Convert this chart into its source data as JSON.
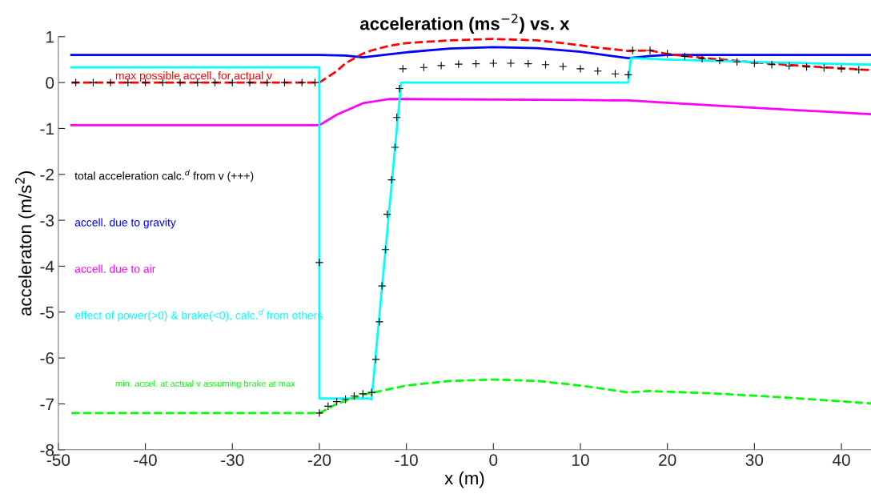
{
  "chart_data": {
    "type": "line",
    "title": "acceleration (ms$^{−2}$) vs. x",
    "xlabel": "x (m)",
    "ylabel": "acceleraton (m/s$^{2}$)",
    "xlim": [
      -50,
      43.4
    ],
    "ylim": [
      -8,
      1
    ],
    "xticks": [
      -50,
      -40,
      -30,
      -20,
      -10,
      0,
      10,
      20,
      30,
      40
    ],
    "yticks": [
      -8,
      -7,
      -6,
      -5,
      -4,
      -3,
      -2,
      -1,
      0,
      1
    ],
    "grid": false,
    "series": [
      {
        "name": "accell. due to gravity",
        "color": "#0000ff",
        "line_style": "solid",
        "x": [
          -48.5,
          -20,
          -17,
          -15,
          -10,
          -5,
          0,
          5,
          10,
          15.5,
          18,
          20,
          30,
          43.4
        ],
        "values": [
          0.6,
          0.6,
          0.59,
          0.55,
          0.66,
          0.74,
          0.77,
          0.75,
          0.67,
          0.53,
          0.58,
          0.6,
          0.6,
          0.6
        ]
      },
      {
        "name": "max possible accell. for actual v",
        "color": "#ff0000",
        "line_style": "dashed",
        "x": [
          -48.5,
          -20,
          -18,
          -17,
          -15,
          -14,
          -12,
          -10,
          -5,
          0,
          5,
          8,
          12,
          15.5,
          18,
          20,
          25,
          30,
          35,
          40,
          43.4
        ],
        "values": [
          0,
          0,
          0.25,
          0.42,
          0.63,
          0.7,
          0.8,
          0.86,
          0.92,
          0.95,
          0.92,
          0.86,
          0.76,
          0.69,
          0.7,
          0.62,
          0.52,
          0.44,
          0.37,
          0.31,
          0.27
        ]
      },
      {
        "name": "total acceleration calc.$^{d}$ from v (+++)",
        "type": "scatter",
        "marker": "cross",
        "color": "#000000",
        "x": [
          -48,
          -46,
          -44,
          -42,
          -40,
          -38,
          -36,
          -34,
          -32,
          -30,
          -28,
          -26,
          -24,
          -22,
          -20.5,
          -20,
          -20,
          -19,
          -18,
          -17,
          -16,
          -15,
          -14,
          -13.5,
          -13.1,
          -12.8,
          -12.4,
          -12.2,
          -11.7,
          -11.3,
          -11.1,
          -10.8,
          -10.4,
          -8,
          -6,
          -4,
          -2,
          0,
          2,
          4,
          6,
          8,
          10,
          12,
          14,
          15.5,
          16,
          18,
          20,
          22,
          24,
          26,
          28,
          30,
          32,
          34,
          36,
          38,
          40,
          42
        ],
        "values": [
          0,
          0,
          0,
          0,
          0,
          0,
          0,
          0,
          0,
          0,
          0,
          0,
          0,
          0,
          0,
          -3.92,
          -7.2,
          -7.05,
          -6.95,
          -6.9,
          -6.83,
          -6.78,
          -6.75,
          -6.03,
          -5.21,
          -4.43,
          -3.64,
          -2.87,
          -2.12,
          -1.41,
          -0.76,
          -0.13,
          0.3,
          0.33,
          0.37,
          0.4,
          0.41,
          0.42,
          0.42,
          0.41,
          0.39,
          0.35,
          0.3,
          0.25,
          0.19,
          0.17,
          0.7,
          0.7,
          0.63,
          0.57,
          0.52,
          0.48,
          0.45,
          0.42,
          0.39,
          0.36,
          0.34,
          0.32,
          0.3,
          0.28
        ]
      },
      {
        "name": "accell. due to air",
        "color": "#ff00ff",
        "line_style": "solid",
        "x": [
          -48.5,
          -20,
          -18,
          -15,
          -12,
          -10,
          0,
          10,
          15.5,
          20,
          30,
          43.4
        ],
        "values": [
          -0.93,
          -0.93,
          -0.7,
          -0.45,
          -0.36,
          -0.36,
          -0.37,
          -0.38,
          -0.39,
          -0.44,
          -0.55,
          -0.69
        ]
      },
      {
        "name": "effect of power(>0) & brake(<0), calc.$^{d}$ from others",
        "color": "#00ffff",
        "line_style": "solid",
        "x": [
          -48.5,
          -20,
          -20,
          -14.5,
          -14,
          -10.6,
          15.5,
          15.8,
          20,
          30,
          43.4
        ],
        "values": [
          0.33,
          0.33,
          -6.88,
          -6.88,
          -6.9,
          0,
          0,
          0.53,
          0.5,
          0.45,
          0.39
        ]
      },
      {
        "name": "min. accel. at actual v assuming brake at max",
        "color": "#00ff00",
        "line_style": "dashed",
        "x": [
          -48.5,
          -20,
          -18,
          -15,
          -10,
          -5,
          0,
          5,
          10,
          15.5,
          18,
          25,
          30,
          35,
          43.4
        ],
        "values": [
          -7.2,
          -7.2,
          -7.0,
          -6.8,
          -6.6,
          -6.5,
          -6.47,
          -6.5,
          -6.6,
          -6.75,
          -6.72,
          -6.77,
          -6.82,
          -6.88,
          -6.99
        ]
      }
    ]
  }
}
